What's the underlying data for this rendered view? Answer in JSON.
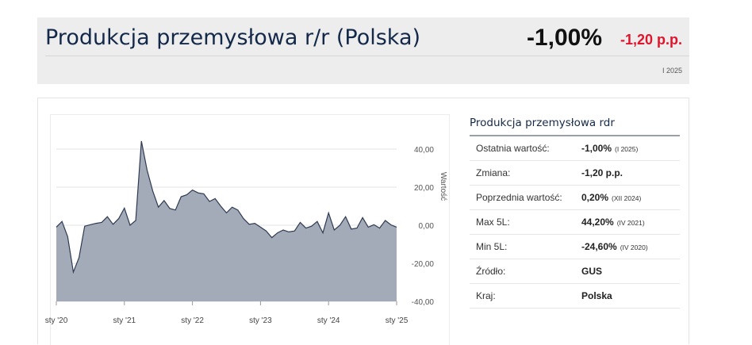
{
  "header": {
    "title": "Produkcja przemysłowa r/r (Polska)",
    "value": "-1,00%",
    "change": "-1,20 p.p.",
    "period": "I 2025"
  },
  "stats": {
    "title": "Produkcja przemysłowa rdr",
    "rows": [
      {
        "label": "Ostatnia wartość:",
        "value": "-1,00%",
        "note": "(I 2025)"
      },
      {
        "label": "Zmiana:",
        "value": "-1,20 p.p.",
        "note": ""
      },
      {
        "label": "Poprzednia wartość:",
        "value": "0,20%",
        "note": "(XII 2024)"
      },
      {
        "label": "Max 5L:",
        "value": "44,20%",
        "note": "(IV 2021)"
      },
      {
        "label": "Min 5L:",
        "value": "-24,60%",
        "note": "(IV 2020)"
      },
      {
        "label": "Źródło:",
        "value": "GUS",
        "note": ""
      },
      {
        "label": "Kraj:",
        "value": "Polska",
        "note": ""
      }
    ]
  },
  "colors": {
    "title": "#14294a",
    "negative": "#e0142b",
    "area_fill": "#a3abb8",
    "area_line": "#2e3a52"
  },
  "chart_data": {
    "type": "area",
    "title": "",
    "xlabel": "",
    "ylabel": "Wartość",
    "ylim": [
      -40,
      40
    ],
    "y_ticks": [
      "40,00",
      "20,00",
      "0,00",
      "-20,00",
      "-40,00"
    ],
    "x_ticks": [
      "sty '20",
      "sty '21",
      "sty '22",
      "sty '23",
      "sty '24",
      "sty '25"
    ],
    "x": [
      "2020-01",
      "2020-02",
      "2020-03",
      "2020-04",
      "2020-05",
      "2020-06",
      "2020-07",
      "2020-08",
      "2020-09",
      "2020-10",
      "2020-11",
      "2020-12",
      "2021-01",
      "2021-02",
      "2021-03",
      "2021-04",
      "2021-05",
      "2021-06",
      "2021-07",
      "2021-08",
      "2021-09",
      "2021-10",
      "2021-11",
      "2021-12",
      "2022-01",
      "2022-02",
      "2022-03",
      "2022-04",
      "2022-05",
      "2022-06",
      "2022-07",
      "2022-08",
      "2022-09",
      "2022-10",
      "2022-11",
      "2022-12",
      "2023-01",
      "2023-02",
      "2023-03",
      "2023-04",
      "2023-05",
      "2023-06",
      "2023-07",
      "2023-08",
      "2023-09",
      "2023-10",
      "2023-11",
      "2023-12",
      "2024-01",
      "2024-02",
      "2024-03",
      "2024-04",
      "2024-05",
      "2024-06",
      "2024-07",
      "2024-08",
      "2024-09",
      "2024-10",
      "2024-11",
      "2024-12",
      "2025-01"
    ],
    "series": [
      {
        "values": [
          -1.0,
          2.0,
          -6.0,
          -24.6,
          -17.0,
          -0.5,
          0.3,
          1.0,
          1.5,
          4.5,
          0.5,
          3.5,
          9.0,
          0.0,
          2.5,
          44.2,
          29.0,
          18.0,
          9.5,
          13.0,
          8.8,
          8.0,
          15.0,
          16.0,
          18.5,
          17.0,
          16.5,
          12.5,
          14.0,
          10.0,
          6.5,
          9.5,
          8.0,
          3.5,
          0.5,
          1.0,
          -1.0,
          -3.0,
          -6.5,
          -4.0,
          -2.5,
          -3.5,
          -3.0,
          1.5,
          -1.5,
          -0.5,
          2.0,
          -4.0,
          6.5,
          -2.5,
          0.0,
          4.5,
          -2.0,
          -1.5,
          4.0,
          -1.0,
          0.3,
          -1.5,
          2.5,
          0.2,
          -1.0
        ]
      }
    ],
    "grid": true
  }
}
